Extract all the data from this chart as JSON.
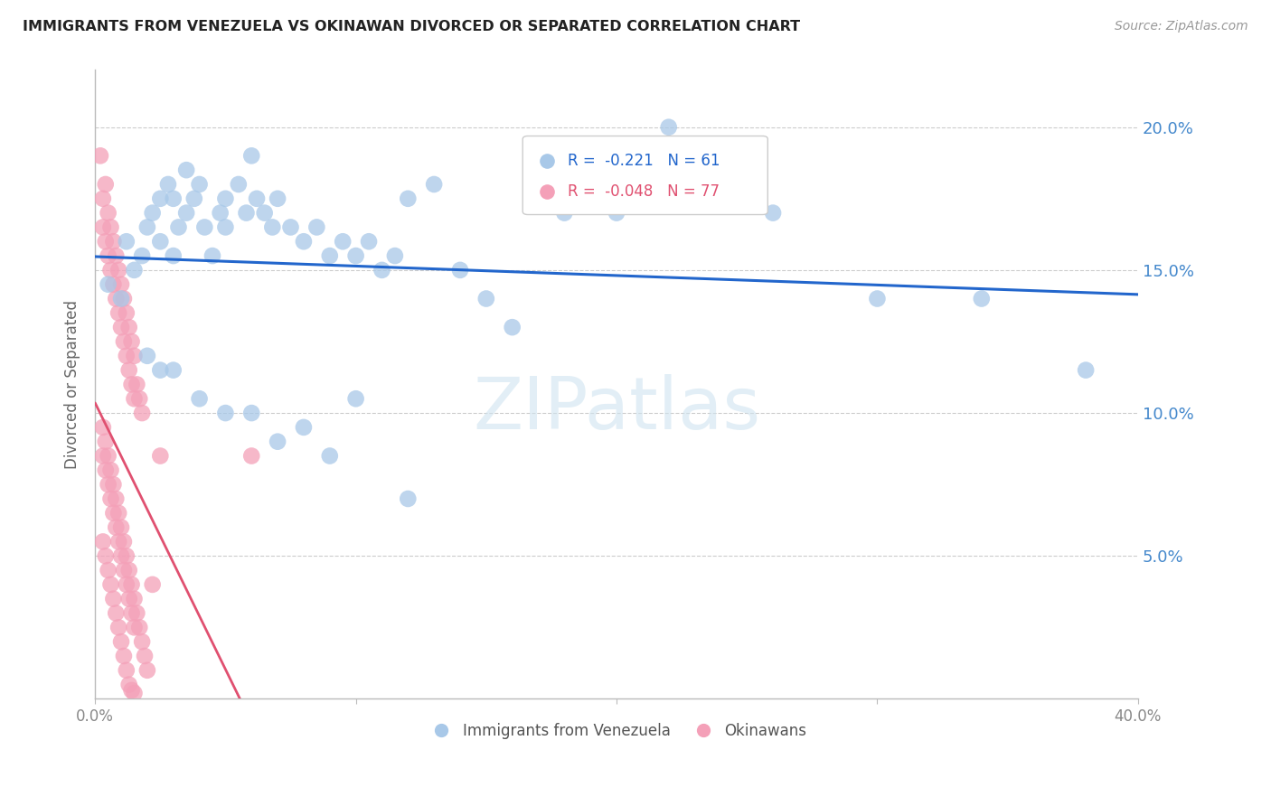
{
  "title": "IMMIGRANTS FROM VENEZUELA VS OKINAWAN DIVORCED OR SEPARATED CORRELATION CHART",
  "source": "Source: ZipAtlas.com",
  "ylabel": "Divorced or Separated",
  "ytick_labels": [
    "20.0%",
    "15.0%",
    "10.0%",
    "5.0%"
  ],
  "ytick_values": [
    0.2,
    0.15,
    0.1,
    0.05
  ],
  "xlim": [
    0.0,
    0.4
  ],
  "ylim": [
    0.0,
    0.22
  ],
  "legend_blue_R": "-0.221",
  "legend_blue_N": "61",
  "legend_pink_R": "-0.048",
  "legend_pink_N": "77",
  "blue_color": "#a8c8e8",
  "pink_color": "#f4a0b8",
  "blue_line_color": "#2266cc",
  "pink_line_color": "#e05070",
  "watermark": "ZIPatlas",
  "blue_scatter_x": [
    0.005,
    0.01,
    0.012,
    0.015,
    0.018,
    0.02,
    0.022,
    0.025,
    0.025,
    0.028,
    0.03,
    0.03,
    0.032,
    0.035,
    0.035,
    0.038,
    0.04,
    0.042,
    0.045,
    0.048,
    0.05,
    0.05,
    0.055,
    0.058,
    0.06,
    0.062,
    0.065,
    0.068,
    0.07,
    0.075,
    0.08,
    0.085,
    0.09,
    0.095,
    0.1,
    0.105,
    0.11,
    0.115,
    0.12,
    0.13,
    0.14,
    0.15,
    0.16,
    0.18,
    0.2,
    0.22,
    0.26,
    0.3,
    0.34,
    0.38,
    0.02,
    0.025,
    0.03,
    0.04,
    0.05,
    0.06,
    0.07,
    0.08,
    0.09,
    0.1,
    0.12
  ],
  "blue_scatter_y": [
    0.145,
    0.14,
    0.16,
    0.15,
    0.155,
    0.165,
    0.17,
    0.175,
    0.16,
    0.18,
    0.175,
    0.155,
    0.165,
    0.17,
    0.185,
    0.175,
    0.18,
    0.165,
    0.155,
    0.17,
    0.165,
    0.175,
    0.18,
    0.17,
    0.19,
    0.175,
    0.17,
    0.165,
    0.175,
    0.165,
    0.16,
    0.165,
    0.155,
    0.16,
    0.155,
    0.16,
    0.15,
    0.155,
    0.175,
    0.18,
    0.15,
    0.14,
    0.13,
    0.17,
    0.17,
    0.2,
    0.17,
    0.14,
    0.14,
    0.115,
    0.12,
    0.115,
    0.115,
    0.105,
    0.1,
    0.1,
    0.09,
    0.095,
    0.085,
    0.105,
    0.07
  ],
  "pink_scatter_x": [
    0.002,
    0.003,
    0.003,
    0.004,
    0.004,
    0.005,
    0.005,
    0.006,
    0.006,
    0.007,
    0.007,
    0.008,
    0.008,
    0.009,
    0.009,
    0.01,
    0.01,
    0.011,
    0.011,
    0.012,
    0.012,
    0.013,
    0.013,
    0.014,
    0.014,
    0.015,
    0.015,
    0.016,
    0.017,
    0.018,
    0.003,
    0.004,
    0.005,
    0.006,
    0.007,
    0.008,
    0.009,
    0.01,
    0.011,
    0.012,
    0.013,
    0.014,
    0.015,
    0.016,
    0.017,
    0.018,
    0.019,
    0.02,
    0.022,
    0.025,
    0.003,
    0.004,
    0.005,
    0.006,
    0.007,
    0.008,
    0.009,
    0.01,
    0.011,
    0.012,
    0.013,
    0.014,
    0.015,
    0.003,
    0.004,
    0.005,
    0.006,
    0.007,
    0.008,
    0.009,
    0.01,
    0.011,
    0.012,
    0.013,
    0.014,
    0.015,
    0.06
  ],
  "pink_scatter_y": [
    0.19,
    0.175,
    0.165,
    0.18,
    0.16,
    0.17,
    0.155,
    0.165,
    0.15,
    0.16,
    0.145,
    0.155,
    0.14,
    0.15,
    0.135,
    0.145,
    0.13,
    0.14,
    0.125,
    0.135,
    0.12,
    0.13,
    0.115,
    0.125,
    0.11,
    0.12,
    0.105,
    0.11,
    0.105,
    0.1,
    0.095,
    0.09,
    0.085,
    0.08,
    0.075,
    0.07,
    0.065,
    0.06,
    0.055,
    0.05,
    0.045,
    0.04,
    0.035,
    0.03,
    0.025,
    0.02,
    0.015,
    0.01,
    0.04,
    0.085,
    0.085,
    0.08,
    0.075,
    0.07,
    0.065,
    0.06,
    0.055,
    0.05,
    0.045,
    0.04,
    0.035,
    0.03,
    0.025,
    0.055,
    0.05,
    0.045,
    0.04,
    0.035,
    0.03,
    0.025,
    0.02,
    0.015,
    0.01,
    0.005,
    0.003,
    0.002,
    0.085
  ]
}
